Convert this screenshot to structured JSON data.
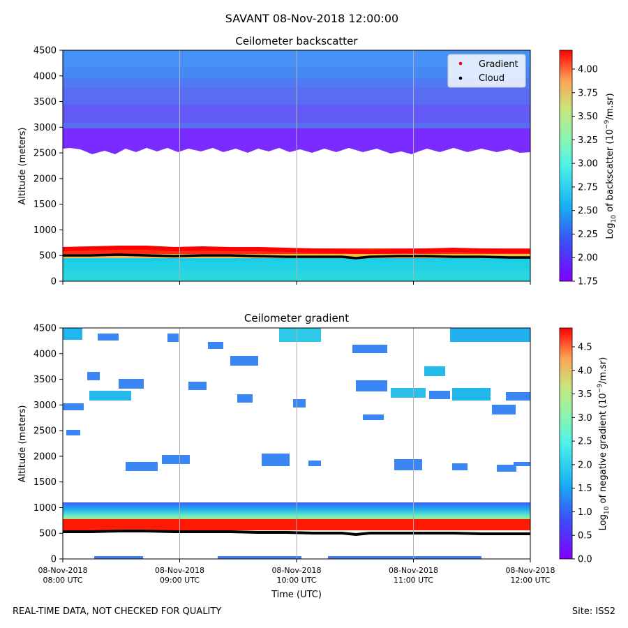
{
  "figure": {
    "suptitle": "SAVANT 08-Nov-2018 12:00:00",
    "footer_left": "REAL-TIME DATA, NOT CHECKED FOR QUALITY",
    "footer_right": "Site: ISS2"
  },
  "colors": {
    "gradient_marker": "#ff0000",
    "cloud_marker": "#000000",
    "grid": "#b0b0b0"
  },
  "chart_data": [
    {
      "type": "heatmap",
      "title": "Ceilometer backscatter",
      "xlabel": "",
      "ylabel": "Altitude (meters)",
      "x_tick_labels": [
        [
          "08-Nov-2018",
          "08:00 UTC"
        ],
        [
          "08-Nov-2018",
          "09:00 UTC"
        ],
        [
          "08-Nov-2018",
          "10:00 UTC"
        ],
        [
          "08-Nov-2018",
          "11:00 UTC"
        ],
        [
          "08-Nov-2018",
          "12:00 UTC"
        ]
      ],
      "x_tick_hours": [
        8,
        9,
        10,
        11,
        12
      ],
      "xlim_hours": [
        8,
        12
      ],
      "y_ticks": [
        0,
        500,
        1000,
        1500,
        2000,
        2500,
        3000,
        3500,
        4000,
        4500
      ],
      "ylim": [
        0,
        4500
      ],
      "grid": "vertical",
      "colorbar": {
        "label_prefix": "Log",
        "label_sub": "10",
        "label_mid": " of backscatter (10",
        "label_sup": "−9",
        "label_suffix": "/m.sr)",
        "range": [
          1.75,
          4.2
        ],
        "ticks": [
          "1.75",
          "2.00",
          "2.25",
          "2.50",
          "2.75",
          "3.00",
          "3.25",
          "3.50",
          "3.75",
          "4.00"
        ]
      },
      "legend": {
        "position": "top-right",
        "entries": [
          {
            "label": "Gradient",
            "marker_color": "#ff0000"
          },
          {
            "label": "Cloud",
            "marker_color": "#000000"
          }
        ]
      },
      "layers": [
        {
          "name": "surface layer",
          "alt_range": [
            0,
            500
          ],
          "log_value": 2.5
        },
        {
          "name": "layer top peak",
          "alt_range": [
            530,
            640
          ],
          "log_value": 4.1
        },
        {
          "name": "upper aerosol",
          "alt_range": [
            2550,
            4500
          ],
          "log_value": 2.1
        }
      ],
      "gradient_height_m": 600,
      "cloud_height_m": 505
    },
    {
      "type": "heatmap",
      "title": "Ceilometer gradient",
      "xlabel": "Time (UTC)",
      "ylabel": "Altitude (meters)",
      "x_tick_labels": [
        [
          "08-Nov-2018",
          "08:00 UTC"
        ],
        [
          "08-Nov-2018",
          "09:00 UTC"
        ],
        [
          "08-Nov-2018",
          "10:00 UTC"
        ],
        [
          "08-Nov-2018",
          "11:00 UTC"
        ],
        [
          "08-Nov-2018",
          "12:00 UTC"
        ]
      ],
      "x_tick_hours": [
        8,
        9,
        10,
        11,
        12
      ],
      "xlim_hours": [
        8,
        12
      ],
      "y_ticks": [
        0,
        500,
        1000,
        1500,
        2000,
        2500,
        3000,
        3500,
        4000,
        4500
      ],
      "ylim": [
        0,
        4500
      ],
      "grid": "vertical",
      "colorbar": {
        "label_prefix": "Log",
        "label_sub": "10",
        "label_mid": " of negative gradient (10",
        "label_sup": "−9",
        "label_suffix": "/m.sr)",
        "range": [
          0,
          4.9
        ],
        "ticks": [
          "0.0",
          "0.5",
          "1.0",
          "1.5",
          "2.0",
          "2.5",
          "3.0",
          "3.5",
          "4.0",
          "4.5"
        ]
      },
      "layers": [
        {
          "name": "boundary gradient band",
          "alt_range": [
            560,
            1100
          ],
          "log_value": 4.6
        }
      ],
      "cloud_height_m": 520
    }
  ]
}
